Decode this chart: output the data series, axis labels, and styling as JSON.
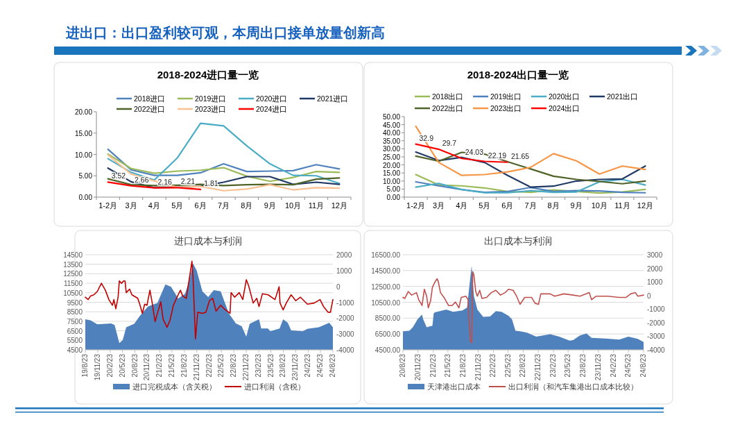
{
  "chart_data": [
    {
      "type": "line",
      "title": "2018-2024进口量一览",
      "annotations": [
        "进出口：出口盈利较可观，本周出口接单放量创新高"
      ],
      "categories": [
        "1-2月",
        "3月",
        "4月",
        "5月",
        "6月",
        "7月",
        "8月",
        "9月",
        "10月",
        "11月",
        "12月"
      ],
      "series": [
        {
          "name": "2018进口",
          "color": "#4f81bd",
          "values": [
            11.2,
            6.4,
            5.1,
            5.1,
            5.7,
            7.8,
            6.0,
            6.1,
            6.2,
            7.6,
            6.6
          ]
        },
        {
          "name": "2019进口",
          "color": "#9bbb59",
          "values": [
            10.1,
            6.7,
            5.6,
            6.1,
            6.3,
            6.9,
            4.9,
            3.7,
            4.6,
            6.0,
            5.8
          ]
        },
        {
          "name": "2020进口",
          "color": "#4bacc6",
          "values": [
            9.0,
            5.8,
            4.0,
            9.2,
            17.3,
            16.7,
            12.0,
            7.8,
            5.1,
            5.0,
            3.2
          ]
        },
        {
          "name": "2021进口",
          "color": "#1f3864",
          "values": [
            6.8,
            3.6,
            2.2,
            2.3,
            2.5,
            3.5,
            4.8,
            4.8,
            3.0,
            3.5,
            3.0
          ]
        },
        {
          "name": "2022进口",
          "color": "#4f6228",
          "values": [
            4.3,
            2.9,
            2.7,
            2.8,
            3.0,
            2.7,
            2.9,
            3.0,
            2.9,
            4.2,
            4.5
          ]
        },
        {
          "name": "2023进口",
          "color": "#fac090",
          "values": [
            9.9,
            5.4,
            3.8,
            2.3,
            2.5,
            1.5,
            1.9,
            2.9,
            1.7,
            2.2,
            2.1
          ]
        },
        {
          "name": "2024进口",
          "color": "#ff0000",
          "values": [
            3.52,
            2.66,
            2.16,
            2.21,
            1.81,
            null,
            null,
            null,
            null,
            null,
            null
          ],
          "value_labels": [
            "3.52",
            "2.66",
            "2.16",
            "2.21",
            "1.81",
            null,
            null,
            null,
            null,
            null,
            null
          ]
        }
      ],
      "ylim": [
        0,
        20
      ],
      "yticks": [
        {
          "value": 0,
          "label": "0.00"
        },
        {
          "value": 5,
          "label": "5.00"
        },
        {
          "value": 10,
          "label": "10.00"
        },
        {
          "value": 15,
          "label": "15.00"
        },
        {
          "value": 20,
          "label": "20.00"
        }
      ],
      "legend": "top"
    },
    {
      "type": "line",
      "title": "2018-2024出口量一览",
      "categories": [
        "1-2月",
        "3月",
        "4月",
        "5月",
        "6月",
        "7月",
        "8月",
        "9月",
        "10月",
        "11月",
        "12月"
      ],
      "series": [
        {
          "name": "2018出口",
          "color": "#9bbb59",
          "values": [
            14.0,
            7.5,
            7.0,
            5.7,
            3.5,
            3.0,
            4.5,
            3.5,
            2.5,
            3.2,
            4.8
          ]
        },
        {
          "name": "2019出口",
          "color": "#4f81bd",
          "values": [
            9.5,
            7.0,
            4.7,
            3.0,
            3.5,
            6.0,
            3.5,
            4.0,
            3.8,
            3.0,
            2.7
          ]
        },
        {
          "name": "2020出口",
          "color": "#4bacc6",
          "values": [
            6.2,
            8.5,
            4.7,
            2.7,
            2.7,
            4.0,
            3.0,
            3.2,
            9.5,
            11.0,
            7.5
          ]
        },
        {
          "name": "2021出口",
          "color": "#1f3864",
          "values": [
            28.0,
            22.7,
            24.7,
            21.5,
            13.5,
            6.2,
            6.8,
            10.0,
            11.0,
            11.3,
            19.3
          ]
        },
        {
          "name": "2022出口",
          "color": "#4f6228",
          "values": [
            25.5,
            22.3,
            27.8,
            26.7,
            22.0,
            17.5,
            13.0,
            11.0,
            9.7,
            8.3,
            10.0
          ]
        },
        {
          "name": "2023出口",
          "color": "#f79646",
          "values": [
            44.0,
            21.5,
            13.5,
            14.0,
            15.7,
            18.5,
            27.0,
            22.5,
            14.3,
            19.3,
            17.2
          ]
        },
        {
          "name": "2024出口",
          "color": "#ff0000",
          "values": [
            32.9,
            29.7,
            24.03,
            22.19,
            21.65,
            null,
            null,
            null,
            null,
            null,
            null
          ],
          "value_labels": [
            "32.9",
            "29.7",
            "24.03",
            "22.19",
            "21.65",
            null,
            null,
            null,
            null,
            null,
            null
          ]
        }
      ],
      "ylim": [
        0,
        50
      ],
      "yticks": [
        {
          "value": 0,
          "label": "0.00"
        },
        {
          "value": 5,
          "label": "5.00"
        },
        {
          "value": 10,
          "label": "10.00"
        },
        {
          "value": 15,
          "label": "15.00"
        },
        {
          "value": 20,
          "label": "20.00"
        },
        {
          "value": 25,
          "label": "25.00"
        },
        {
          "value": 30,
          "label": "30.00"
        },
        {
          "value": 35,
          "label": "35.00"
        },
        {
          "value": 40,
          "label": "40.00"
        },
        {
          "value": 45,
          "label": "45.00"
        },
        {
          "value": 50,
          "label": "50.00"
        }
      ],
      "legend": "top"
    },
    {
      "type": "area",
      "title": "进口成本与利润",
      "series": [
        {
          "name": "进口完税成本（含关税）",
          "color": "#4f81bd",
          "x": [
            "2019-08-23",
            "2019-09-30",
            "2019-11-20",
            "2020-03-01",
            "2020-03-26",
            "2020-04-30",
            "2020-05-25",
            "2020-06-20",
            "2020-08-18",
            "2020-09-30",
            "2020-11-28",
            "2021-02-05",
            "2021-04-05",
            "2021-05-17",
            "2021-07-08",
            "2021-08-28",
            "2021-09-30",
            "2021-10-26",
            "2021-11-22",
            "2022-01-03",
            "2022-02-15",
            "2022-03-28",
            "2022-05-18",
            "2022-07-17",
            "2022-09-07",
            "2022-10-20",
            "2022-11-23",
            "2022-12-18",
            "2023-02-25",
            "2023-03-13",
            "2023-05-01",
            "2023-05-20",
            "2023-07-27",
            "2023-08-22",
            "2023-09-25",
            "2023-10-20",
            "2024-01-14",
            "2024-02-17",
            "2024-05-11",
            "2024-07-01",
            "2024-07-27",
            "2024-08-23"
          ],
          "values": [
            7720,
            7600,
            7180,
            7280,
            7110,
            5210,
            5520,
            6870,
            7230,
            8090,
            9060,
            9430,
            11380,
            11130,
            9910,
            10400,
            11870,
            13570,
            12840,
            10650,
            10040,
            10770,
            10650,
            8330,
            7280,
            6990,
            5890,
            7230,
            7720,
            6740,
            6740,
            6450,
            6740,
            7720,
            7350,
            6550,
            6450,
            6700,
            6870,
            7180,
            7350,
            6870
          ]
        },
        {
          "name": "进口利润（含税）",
          "color": "#c00000",
          "type": "line",
          "axis": "y2",
          "x": [
            "2019-08-23",
            "2019-09-13",
            "2019-09-30",
            "2019-10-25",
            "2019-11-20",
            "2019-12-20",
            "2020-01-18",
            "2020-02-13",
            "2020-03-10",
            "2020-03-21",
            "2020-04-04",
            "2020-04-21",
            "2020-04-30",
            "2020-05-16",
            "2020-06-02",
            "2020-06-11",
            "2020-06-20",
            "2020-07-15",
            "2020-08-01",
            "2020-09-13",
            "2020-09-30",
            "2020-10-17",
            "2020-11-03",
            "2020-11-20",
            "2020-12-12",
            "2020-12-29",
            "2021-01-19",
            "2021-03-02",
            "2021-03-19",
            "2021-04-17",
            "2021-05-09",
            "2021-06-03",
            "2021-07-08",
            "2021-07-25",
            "2021-08-11",
            "2021-09-06",
            "2021-09-30",
            "2021-10-18",
            "2021-10-26",
            "2021-11-13",
            "2021-11-30",
            "2022-01-03",
            "2022-01-29",
            "2022-02-24",
            "2022-03-20",
            "2022-04-14",
            "2022-05-18",
            "2022-06-22",
            "2022-07-26",
            "2022-08-03",
            "2022-08-29",
            "2022-10-02",
            "2022-10-28",
            "2022-11-23",
            "2022-12-10",
            "2023-01-13",
            "2023-02-08",
            "2023-02-25",
            "2023-03-22",
            "2023-05-03",
            "2023-06-23",
            "2023-07-23",
            "2023-07-30",
            "2023-08-22",
            "2023-09-16",
            "2023-10-20",
            "2023-11-23",
            "2023-12-28",
            "2024-02-17",
            "2024-04-07",
            "2024-05-20",
            "2024-06-15",
            "2024-07-19",
            "2024-08-05",
            "2024-08-23"
          ],
          "values": [
            -680,
            -830,
            -610,
            -530,
            -310,
            200,
            -240,
            -830,
            -1190,
            -830,
            -1410,
            -680,
            350,
            200,
            350,
            350,
            -390,
            -170,
            -530,
            -750,
            -1190,
            -1700,
            -1120,
            -1190,
            -240,
            -1050,
            -2220,
            -970,
            -2070,
            -2580,
            -2140,
            -1190,
            -530,
            -240,
            -610,
            -750,
            570,
            1590,
            570,
            -3310,
            -1630,
            -1700,
            -1630,
            -900,
            -750,
            -1560,
            -1190,
            -1480,
            -1700,
            -390,
            -680,
            -390,
            -830,
            420,
            50,
            -1050,
            -750,
            -1270,
            -460,
            -530,
            -830,
            -20,
            -1050,
            -1480,
            -1020,
            -530,
            -900,
            -680,
            -1120,
            -1050,
            -830,
            -1270,
            -1630,
            -1630,
            -830
          ]
        }
      ],
      "xlim": [
        "2019-08-23",
        "2024-08-23"
      ],
      "xticks": [
        {
          "value": "2019-08-23",
          "label": "19/8/23"
        },
        {
          "value": "2019-11-23",
          "label": "19/11/23"
        },
        {
          "value": "2020-02-23",
          "label": "20/2/23"
        },
        {
          "value": "2020-05-23",
          "label": "20/5/23"
        },
        {
          "value": "2020-08-23",
          "label": "20/8/23"
        },
        {
          "value": "2020-11-23",
          "label": "20/11/23"
        },
        {
          "value": "2021-02-23",
          "label": "21/2/23"
        },
        {
          "value": "2021-05-23",
          "label": "21/5/23"
        },
        {
          "value": "2021-08-23",
          "label": "21/8/23"
        },
        {
          "value": "2021-11-23",
          "label": "21/11/23"
        },
        {
          "value": "2022-02-23",
          "label": "22/2/23"
        },
        {
          "value": "2022-05-23",
          "label": "22/5/23"
        },
        {
          "value": "2022-08-23",
          "label": "22/8/23"
        },
        {
          "value": "2022-11-23",
          "label": "22/11/23"
        },
        {
          "value": "2023-02-23",
          "label": "23/2/23"
        },
        {
          "value": "2023-05-23",
          "label": "23/5/23"
        },
        {
          "value": "2023-08-23",
          "label": "23/8/23"
        },
        {
          "value": "2023-11-23",
          "label": "23/11/23"
        },
        {
          "value": "2024-02-23",
          "label": "24/2/23"
        },
        {
          "value": "2024-05-23",
          "label": "24/5/23"
        },
        {
          "value": "2024-08-23",
          "label": "24/8/23"
        }
      ],
      "ylim": [
        4500,
        14500
      ],
      "yticks": [
        4500,
        5500,
        6500,
        7500,
        8500,
        9500,
        10500,
        11500,
        12500,
        13500,
        14500
      ],
      "y2lim": [
        -4000,
        2000
      ],
      "y2ticks": [
        -4000,
        -3000,
        -2000,
        -1000,
        0,
        1000,
        2000
      ],
      "grid": "y",
      "legend": "bottom"
    },
    {
      "type": "area",
      "title": "出口成本与利润",
      "series": [
        {
          "name": "天津港出口成本",
          "color": "#4f81bd",
          "x": [
            "2020-08-23",
            "2020-10-01",
            "2020-10-22",
            "2020-11-20",
            "2020-12-17",
            "2020-12-24",
            "2021-01-14",
            "2021-02-18",
            "2021-02-26",
            "2021-03-05",
            "2021-05-13",
            "2021-06-24",
            "2021-08-19",
            "2021-09-16",
            "2021-09-30",
            "2021-10-14",
            "2021-10-28",
            "2021-11-18",
            "2021-12-23",
            "2022-02-03",
            "2022-03-10",
            "2022-04-14",
            "2022-05-26",
            "2022-06-16",
            "2022-07-07",
            "2022-08-04",
            "2022-09-15",
            "2022-11-10",
            "2023-02-03",
            "2023-03-30",
            "2023-06-01",
            "2023-06-22",
            "2023-08-03",
            "2023-09-12",
            "2023-10-12",
            "2024-01-05",
            "2024-03-28",
            "2024-05-23",
            "2024-07-19",
            "2024-08-23"
          ],
          "values": [
            6840,
            6900,
            7340,
            8360,
            8950,
            8360,
            7340,
            7540,
            9100,
            9240,
            9590,
            9300,
            9480,
            9830,
            12460,
            15100,
            11290,
            9590,
            8660,
            8710,
            9390,
            9300,
            8800,
            8360,
            6900,
            6840,
            6670,
            6170,
            6460,
            6170,
            5670,
            5730,
            6310,
            6550,
            6020,
            5930,
            5790,
            6170,
            5880,
            5490
          ]
        },
        {
          "name": "出口利润（和汽车集港出口成本比较）",
          "color": "#c0504d",
          "type": "line",
          "axis": "y2",
          "x": [
            "2020-08-23",
            "2020-09-03",
            "2020-09-24",
            "2020-10-15",
            "2020-11-13",
            "2020-11-27",
            "2020-12-17",
            "2020-12-31",
            "2021-01-14",
            "2021-01-24",
            "2021-02-07",
            "2021-02-18",
            "2021-03-05",
            "2021-03-18",
            "2021-03-25",
            "2021-04-08",
            "2021-04-29",
            "2021-05-27",
            "2021-06-17",
            "2021-07-08",
            "2021-07-29",
            "2021-08-12",
            "2021-09-09",
            "2021-09-23",
            "2021-09-27",
            "2021-10-07",
            "2021-10-14",
            "2021-10-21",
            "2021-10-28",
            "2021-11-08",
            "2021-11-18",
            "2021-12-02",
            "2021-12-16",
            "2022-01-13",
            "2022-02-10",
            "2022-03-10",
            "2022-04-07",
            "2022-05-05",
            "2022-05-26",
            "2022-06-23",
            "2022-07-14",
            "2022-08-04",
            "2022-09-01",
            "2022-10-13",
            "2022-11-03",
            "2022-11-24",
            "2022-12-08",
            "2023-02-03",
            "2023-03-02",
            "2023-04-27",
            "2023-06-22",
            "2023-08-03",
            "2023-09-28",
            "2023-10-12",
            "2023-11-09",
            "2024-01-19",
            "2024-03-28",
            "2024-05-09",
            "2024-06-06",
            "2024-07-04",
            "2024-07-19",
            "2024-08-23"
          ],
          "values": [
            -140,
            -220,
            290,
            30,
            210,
            -310,
            -740,
            460,
            -50,
            -910,
            -390,
            600,
            980,
            1230,
            1060,
            210,
            -140,
            -740,
            -740,
            -480,
            -910,
            -140,
            -50,
            -310,
            -1590,
            -3390,
            -3480,
            1750,
            1490,
            290,
            -50,
            380,
            -220,
            -140,
            210,
            380,
            30,
            210,
            460,
            380,
            -50,
            -650,
            -140,
            -140,
            -570,
            -650,
            120,
            120,
            -50,
            120,
            30,
            -50,
            210,
            -310,
            -50,
            -50,
            -140,
            -140,
            120,
            210,
            -50,
            30
          ]
        }
      ],
      "xlim": [
        "2020-08-23",
        "2024-08-23"
      ],
      "xticks": [
        {
          "value": "2020-08-23",
          "label": "20/8/23"
        },
        {
          "value": "2020-11-23",
          "label": "20/11/23"
        },
        {
          "value": "2021-02-23",
          "label": "21/2/23"
        },
        {
          "value": "2021-05-23",
          "label": "21/5/23"
        },
        {
          "value": "2021-08-23",
          "label": "21/8/23"
        },
        {
          "value": "2021-11-23",
          "label": "21/11/23"
        },
        {
          "value": "2022-02-23",
          "label": "22/2/23"
        },
        {
          "value": "2022-05-23",
          "label": "22/5/23"
        },
        {
          "value": "2022-08-23",
          "label": "22/8/23"
        },
        {
          "value": "2022-11-23",
          "label": "22/11/23"
        },
        {
          "value": "2023-02-23",
          "label": "23/2/23"
        },
        {
          "value": "2023-05-23",
          "label": "23/5/23"
        },
        {
          "value": "2023-08-23",
          "label": "23/8/23"
        },
        {
          "value": "2023-11-23",
          "label": "23/11/23"
        },
        {
          "value": "2024-02-23",
          "label": "24/2/23"
        },
        {
          "value": "2024-05-23",
          "label": "24/5/23"
        },
        {
          "value": "2024-08-23",
          "label": "24/8/23"
        }
      ],
      "ylim": [
        4500,
        16500
      ],
      "yticks": [
        {
          "value": 4500,
          "label": "4500.00"
        },
        {
          "value": 6500,
          "label": "6500.00"
        },
        {
          "value": 8500,
          "label": "8500.00"
        },
        {
          "value": 10500,
          "label": "10500.00"
        },
        {
          "value": 12500,
          "label": "12500.00"
        },
        {
          "value": 14500,
          "label": "14500.00"
        },
        {
          "value": 16500,
          "label": "16500.00"
        }
      ],
      "y2lim": [
        -4000,
        3000
      ],
      "y2ticks": [
        -4000,
        -3000,
        -2000,
        -1000,
        0,
        1000,
        2000,
        3000
      ],
      "grid": "y",
      "legend": "bottom"
    }
  ]
}
